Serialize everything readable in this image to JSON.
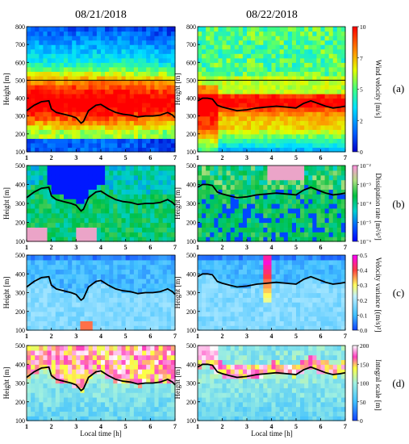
{
  "chart_data": {
    "type": "heatmap",
    "columns": [
      "08/21/2018",
      "08/22/2018"
    ],
    "x_axis": {
      "label": "Local time [h]",
      "range": [
        1,
        7
      ],
      "ticks": [
        1,
        2,
        3,
        4,
        5,
        6,
        7
      ]
    },
    "y_label": "Height [m]",
    "rows": [
      {
        "panel": "(a)",
        "colorbar_label": "Wind velocity [m/s]",
        "colorbar_ticks": [
          "0",
          "2",
          "5",
          "7",
          "10"
        ],
        "colorbar_range": [
          0,
          10
        ],
        "ylim": [
          100,
          800
        ],
        "yticks": [
          100,
          200,
          300,
          400,
          500,
          600,
          700,
          800
        ],
        "reference_line_height": 500
      },
      {
        "panel": "(b)",
        "colorbar_label": "Dissipation rate [m²/s³]",
        "colorbar_ticks": [
          "10⁻⁶",
          "10⁻⁵",
          "10⁻⁴",
          "10⁻³",
          "10⁻²"
        ],
        "colorbar_range": [
          -6,
          -2
        ],
        "colorbar_scale": "log",
        "ylim": [
          100,
          500
        ],
        "yticks": [
          100,
          200,
          300,
          400,
          500
        ]
      },
      {
        "panel": "(c)",
        "colorbar_label": "Velocity variance [(m/s)²]",
        "colorbar_ticks": [
          "0.0",
          "0.1",
          "0.2",
          "0.3",
          "0.4",
          "0.5"
        ],
        "colorbar_range": [
          0,
          0.5
        ],
        "ylim": [
          100,
          500
        ],
        "yticks": [
          100,
          200,
          300,
          400,
          500
        ]
      },
      {
        "panel": "(d)",
        "colorbar_label": "Integral scale [m]",
        "colorbar_ticks": [
          "0",
          "50",
          "100",
          "150",
          "200"
        ],
        "colorbar_range": [
          0,
          200
        ],
        "ylim": [
          100,
          500
        ],
        "yticks": [
          100,
          200,
          300,
          400,
          500
        ]
      }
    ],
    "boundary_layer_height": {
      "08/21/2018": {
        "x": [
          1.0,
          1.3,
          1.6,
          1.9,
          2.0,
          2.2,
          2.5,
          2.8,
          3.0,
          3.2,
          3.3,
          3.5,
          3.8,
          4.0,
          4.3,
          4.6,
          4.9,
          5.2,
          5.5,
          5.8,
          6.1,
          6.4,
          6.7,
          6.9,
          7.0
        ],
        "y": [
          330,
          360,
          380,
          385,
          340,
          320,
          310,
          300,
          290,
          260,
          270,
          330,
          360,
          365,
          340,
          320,
          310,
          305,
          295,
          300,
          300,
          305,
          320,
          305,
          290
        ]
      },
      "08/22/2018": {
        "x": [
          1.0,
          1.2,
          1.4,
          1.6,
          1.8,
          2.0,
          2.3,
          2.6,
          3.0,
          3.4,
          3.8,
          4.2,
          4.6,
          5.0,
          5.3,
          5.6,
          5.9,
          6.2,
          6.5,
          6.8,
          7.0
        ],
        "y": [
          385,
          400,
          400,
          395,
          360,
          350,
          340,
          330,
          335,
          345,
          350,
          355,
          350,
          345,
          370,
          385,
          370,
          355,
          345,
          350,
          355
        ]
      }
    }
  }
}
